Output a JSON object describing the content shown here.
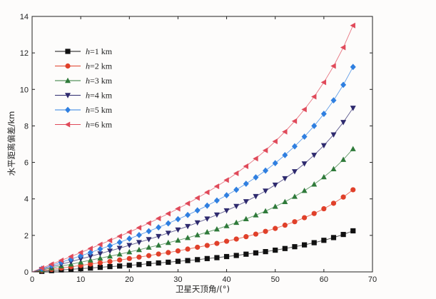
{
  "chart_data": {
    "type": "line",
    "title": "",
    "xlabel": "卫星天顶角/(°)",
    "ylabel": "水平距离偏差/km",
    "xlim": [
      0,
      70
    ],
    "ylim": [
      0,
      14
    ],
    "xticks": [
      0,
      10,
      20,
      30,
      40,
      50,
      60,
      70
    ],
    "yticks": [
      0,
      2,
      4,
      6,
      8,
      10,
      12,
      14
    ],
    "grid": false,
    "legend_position": "top-left",
    "x": [
      0,
      2,
      4,
      6,
      8,
      10,
      12,
      14,
      16,
      18,
      20,
      22,
      24,
      26,
      28,
      30,
      32,
      34,
      36,
      38,
      40,
      42,
      44,
      46,
      48,
      50,
      52,
      54,
      56,
      58,
      60,
      62,
      64,
      66
    ],
    "series": [
      {
        "name": "h=1 km",
        "italic": "h",
        "rest": "=1 km",
        "marker": "square",
        "color": "#111111",
        "values": [
          0,
          0.03,
          0.07,
          0.11,
          0.14,
          0.18,
          0.21,
          0.25,
          0.29,
          0.32,
          0.36,
          0.4,
          0.45,
          0.49,
          0.53,
          0.58,
          0.62,
          0.67,
          0.73,
          0.78,
          0.84,
          0.9,
          0.97,
          1.04,
          1.11,
          1.19,
          1.28,
          1.38,
          1.48,
          1.6,
          1.73,
          1.88,
          2.05,
          2.25
        ]
      },
      {
        "name": "h=2 km",
        "italic": "h",
        "rest": "=2 km",
        "marker": "circle",
        "color": "#e0402a",
        "values": [
          0,
          0.07,
          0.14,
          0.21,
          0.28,
          0.35,
          0.43,
          0.5,
          0.57,
          0.65,
          0.73,
          0.81,
          0.89,
          0.98,
          1.06,
          1.15,
          1.25,
          1.35,
          1.45,
          1.56,
          1.68,
          1.8,
          1.93,
          2.07,
          2.22,
          2.38,
          2.56,
          2.75,
          2.97,
          3.2,
          3.46,
          3.76,
          4.1,
          4.5
        ]
      },
      {
        "name": "h=3 km",
        "italic": "h",
        "rest": "=3 km",
        "marker": "triangle-up",
        "color": "#2f7a3a",
        "values": [
          0,
          0.1,
          0.21,
          0.32,
          0.42,
          0.53,
          0.64,
          0.75,
          0.86,
          0.97,
          1.09,
          1.21,
          1.34,
          1.46,
          1.6,
          1.73,
          1.87,
          2.02,
          2.18,
          2.34,
          2.52,
          2.7,
          2.9,
          3.11,
          3.33,
          3.58,
          3.84,
          4.13,
          4.45,
          4.8,
          5.2,
          5.64,
          6.15,
          6.74
        ]
      },
      {
        "name": "h=4 km",
        "italic": "h",
        "rest": "=4 km",
        "marker": "triangle-down",
        "color": "#2e2a6e",
        "values": [
          0,
          0.14,
          0.28,
          0.42,
          0.56,
          0.71,
          0.85,
          1.0,
          1.15,
          1.3,
          1.46,
          1.62,
          1.78,
          1.95,
          2.13,
          2.31,
          2.5,
          2.7,
          2.91,
          3.13,
          3.36,
          3.6,
          3.86,
          4.14,
          4.44,
          4.77,
          5.12,
          5.5,
          5.93,
          6.4,
          6.93,
          7.52,
          8.2,
          8.98
        ]
      },
      {
        "name": "h=5 km",
        "italic": "h",
        "rest": "=5 km",
        "marker": "diamond",
        "color": "#2f7fe0",
        "values": [
          0,
          0.17,
          0.35,
          0.53,
          0.7,
          0.88,
          1.06,
          1.25,
          1.43,
          1.62,
          1.82,
          2.02,
          2.23,
          2.44,
          2.66,
          2.89,
          3.12,
          3.37,
          3.63,
          3.91,
          4.2,
          4.5,
          4.83,
          5.18,
          5.55,
          5.96,
          6.4,
          6.88,
          7.41,
          8.0,
          8.66,
          9.4,
          10.25,
          11.23
        ]
      },
      {
        "name": "h=6 km",
        "italic": "h",
        "rest": "=6 km",
        "marker": "triangle-left",
        "color": "#e04a5a",
        "values": [
          0,
          0.21,
          0.42,
          0.63,
          0.84,
          1.06,
          1.28,
          1.5,
          1.72,
          1.95,
          2.18,
          2.42,
          2.67,
          2.93,
          3.19,
          3.46,
          3.75,
          4.05,
          4.36,
          4.69,
          5.03,
          5.4,
          5.79,
          6.21,
          6.66,
          7.15,
          7.68,
          8.26,
          8.9,
          9.6,
          10.39,
          11.28,
          12.3,
          13.5
        ]
      }
    ]
  }
}
